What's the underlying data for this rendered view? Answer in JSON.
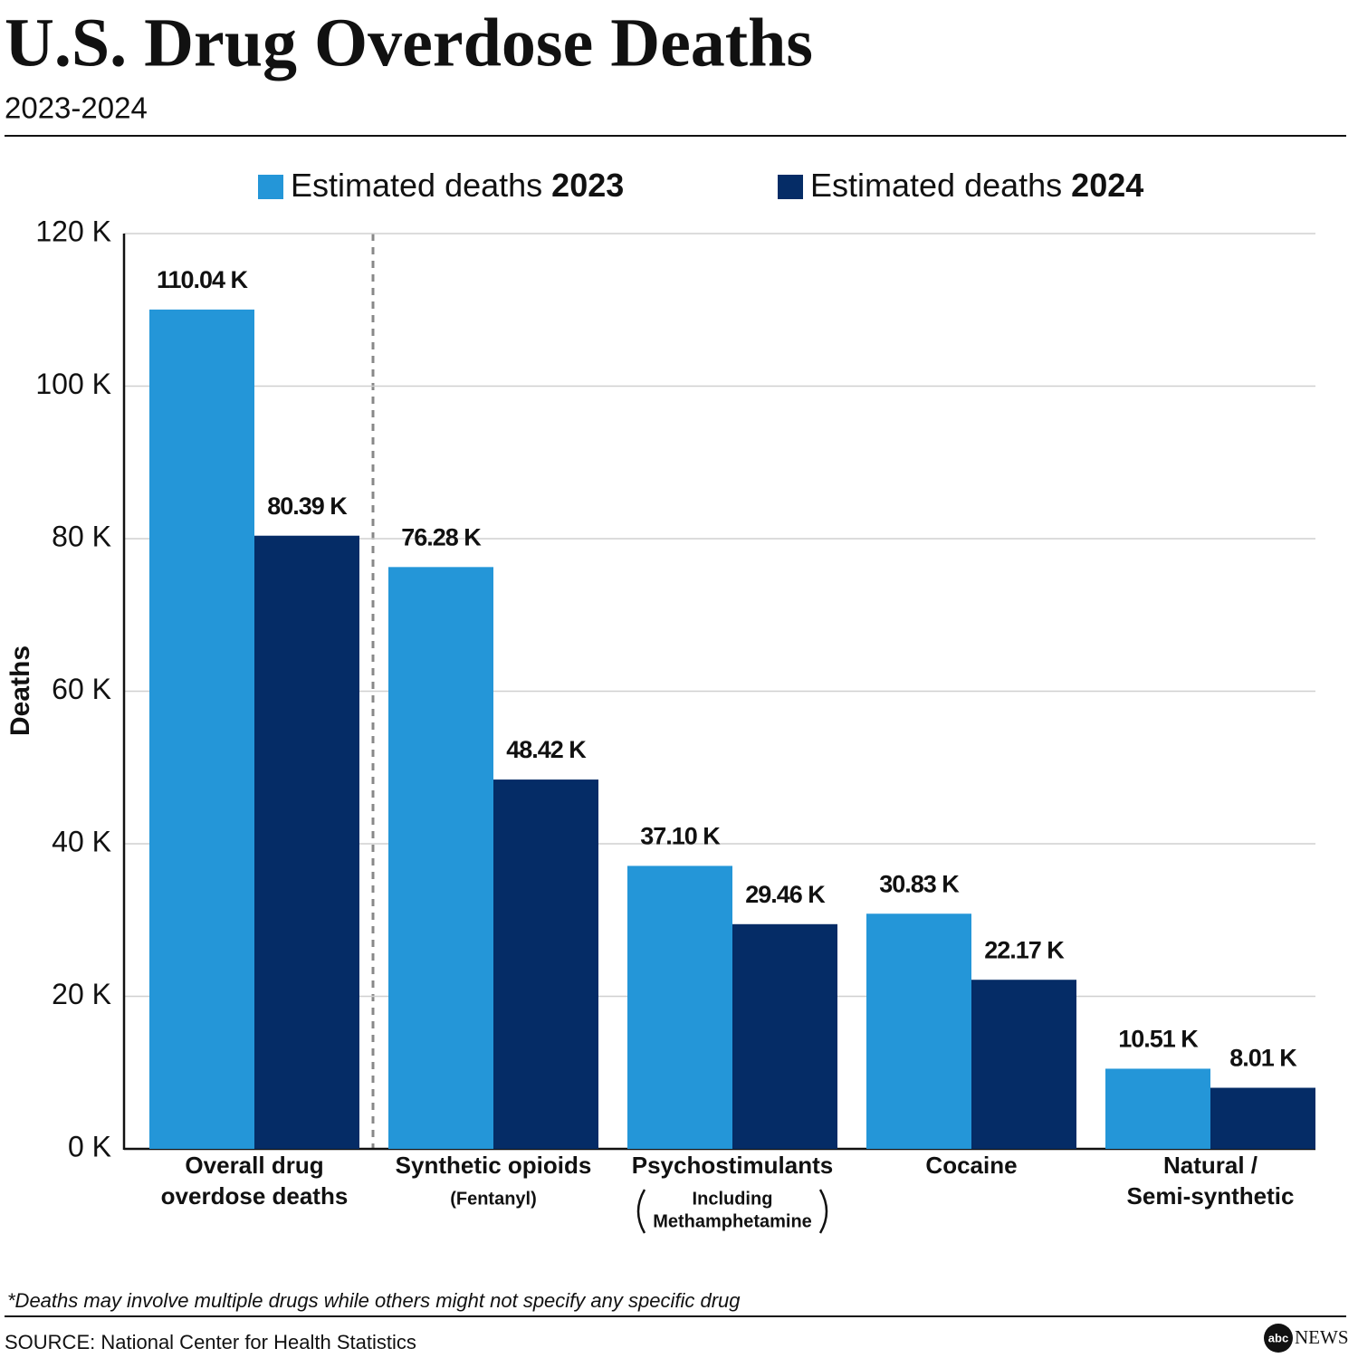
{
  "chart_data": {
    "type": "bar",
    "title": "U.S. Drug Overdose Deaths",
    "subtitle": "2023-2024",
    "y_label": "Deaths",
    "categories": [
      [
        "Overall drug",
        "overdose deaths"
      ],
      [
        "Synthetic opioids"
      ],
      [
        "Psychostimulants"
      ],
      [
        "Cocaine"
      ],
      [
        "Natural /",
        "Semi-synthetic"
      ]
    ],
    "category_notes": [
      null,
      [
        "(Fentanyl)"
      ],
      [
        "Including",
        "Methamphetamine"
      ],
      null,
      null
    ],
    "series": [
      {
        "name": "Estimated deaths 2023",
        "color": "#2496d8",
        "values": [
          110040,
          76280,
          37100,
          30830,
          10510
        ],
        "value_labels": [
          "110.04 K",
          "76.28 K",
          "37.10 K",
          "30.83 K",
          "10.51 K"
        ]
      },
      {
        "name": "Estimated deaths 2024",
        "color": "#052c66",
        "values": [
          80390,
          48420,
          29460,
          22170,
          8010
        ],
        "value_labels": [
          "80.39 K",
          "48.42 K",
          "29.46 K",
          "22.17 K",
          "8.01 K"
        ]
      }
    ],
    "ylim": [
      0,
      120000
    ],
    "yticks": [
      {
        "value": 0,
        "label": "0 K"
      },
      {
        "value": 20000,
        "label": "20 K"
      },
      {
        "value": 40000,
        "label": "40 K"
      },
      {
        "value": 60000,
        "label": "60 K"
      },
      {
        "value": 80000,
        "label": "80 K"
      },
      {
        "value": 100000,
        "label": "100 K"
      },
      {
        "value": 120000,
        "label": "120 K"
      }
    ],
    "grid": true,
    "note": "*Deaths may involve multiple drugs while others might not specify any specific drug",
    "source": "SOURCE: National Center for Health Statistics",
    "brand": {
      "mark": "abc",
      "name": "NEWS"
    }
  }
}
